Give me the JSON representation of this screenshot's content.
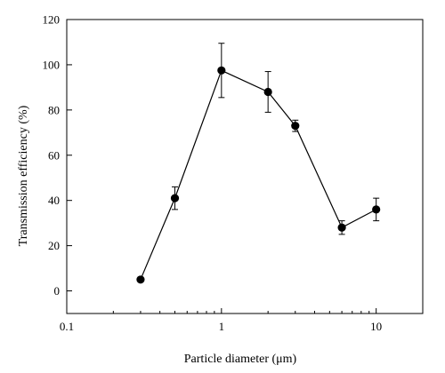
{
  "chart_data": {
    "type": "scatter",
    "title": "",
    "xlabel": "Particle diameter (μm)",
    "ylabel": "Transmission efficiency (%)",
    "xscale": "log",
    "xlim": [
      0.1,
      20
    ],
    "ylim": [
      -10,
      120
    ],
    "x_ticks": [
      0.1,
      1,
      10
    ],
    "x_tick_labels": [
      "0.1",
      "1",
      "10"
    ],
    "y_ticks": [
      0,
      20,
      40,
      60,
      80,
      100,
      120
    ],
    "y_tick_labels": [
      "0",
      "20",
      "40",
      "60",
      "80",
      "100",
      "120"
    ],
    "grid": false,
    "line_connected": true,
    "marker": "filled-circle",
    "series": [
      {
        "x": [
          0.3,
          0.5,
          1,
          2,
          3,
          6,
          10
        ],
        "y": [
          5,
          41,
          97.5,
          88,
          73,
          28,
          36
        ],
        "error": [
          0,
          5,
          12,
          9,
          2.5,
          3,
          5
        ]
      }
    ]
  }
}
